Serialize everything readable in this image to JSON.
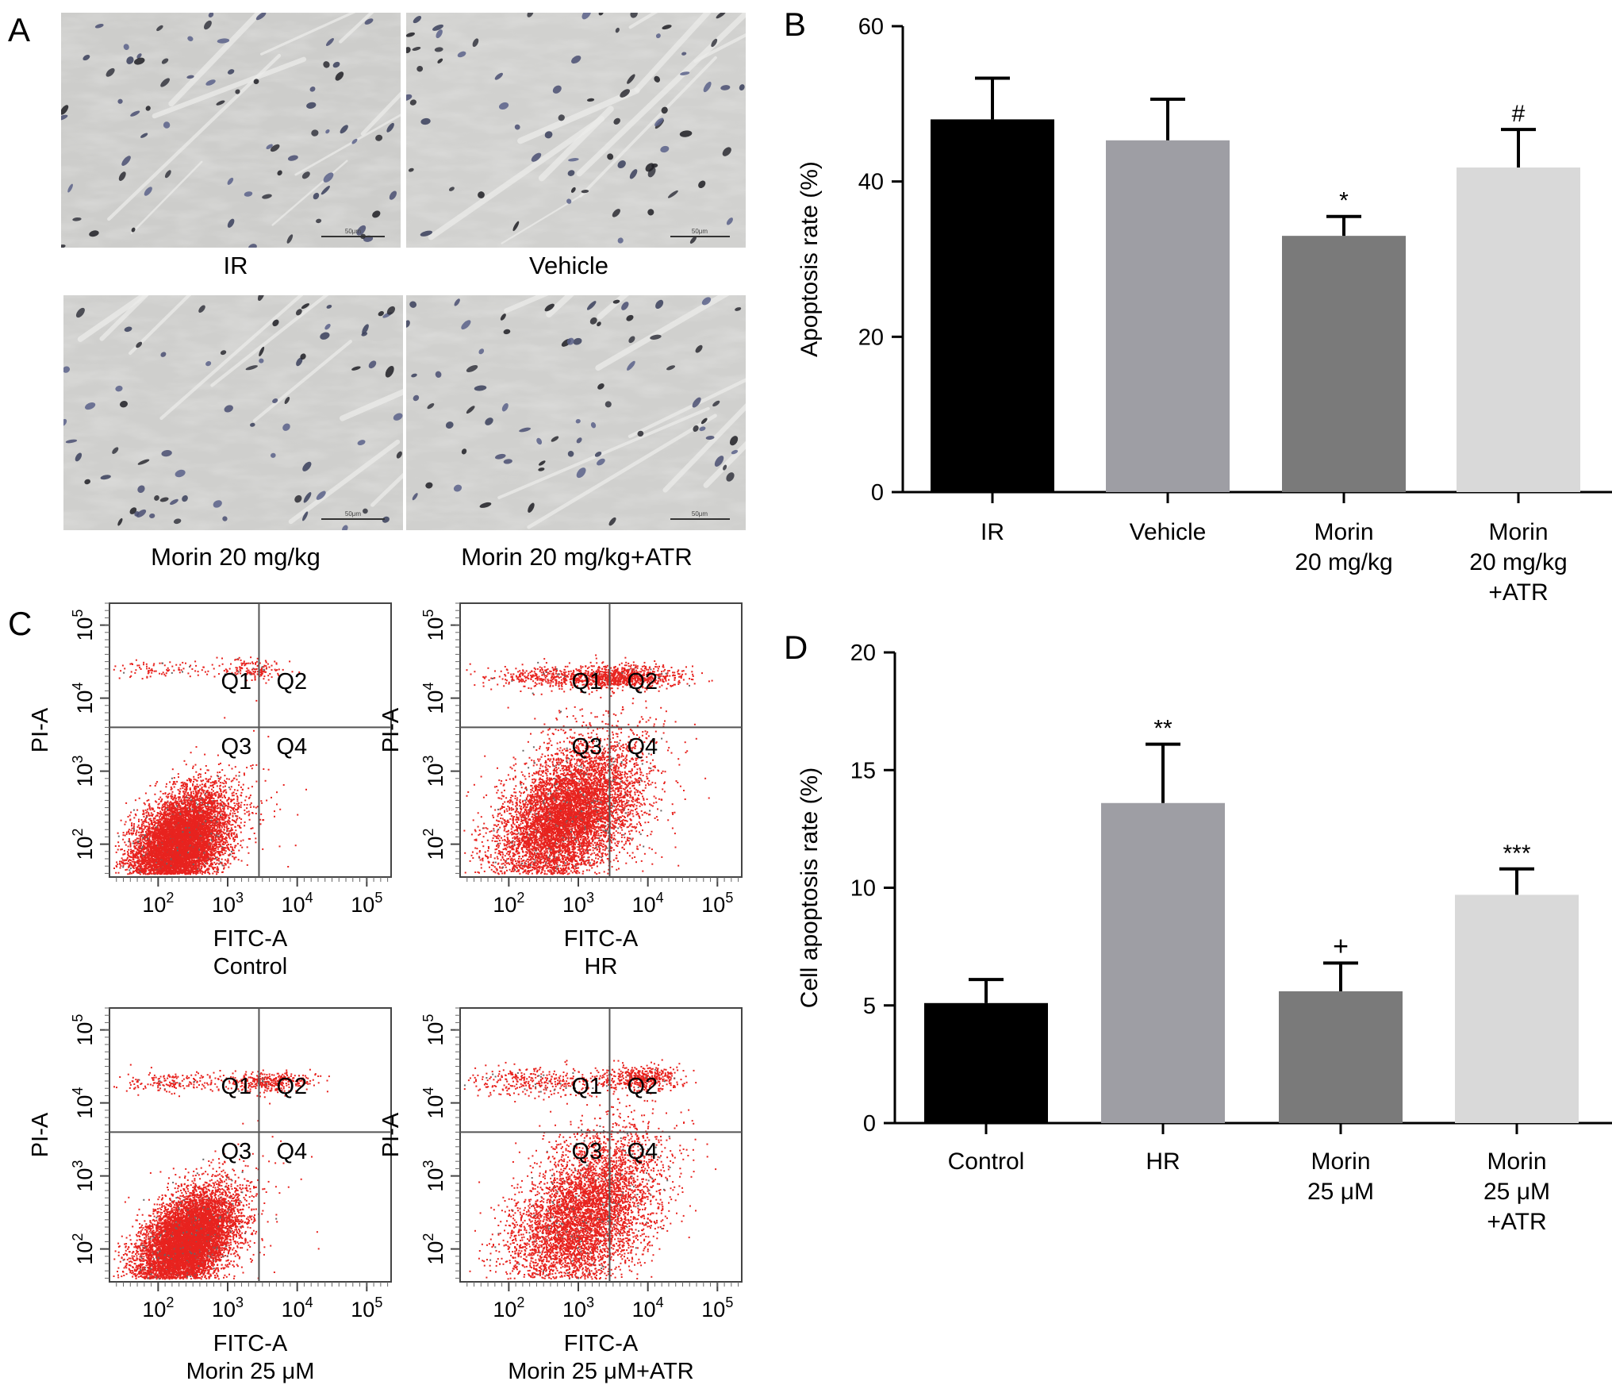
{
  "panels": {
    "A": {
      "letter": "A",
      "images": [
        {
          "caption": "IR",
          "scale_bar": "50μm"
        },
        {
          "caption": "Vehicle",
          "scale_bar": "50μm"
        },
        {
          "caption": "Morin 20 mg/kg",
          "scale_bar": "50μm"
        },
        {
          "caption": "Morin 20 mg/kg+ATR",
          "scale_bar": "50μm"
        }
      ]
    },
    "B": {
      "letter": "B"
    },
    "C": {
      "letter": "C",
      "plots": [
        {
          "caption": "Control",
          "xlabel": "FITC-A",
          "ylabel": "PI-A",
          "quadrants": [
            "Q1",
            "Q2",
            "Q3",
            "Q4"
          ],
          "populations": [
            [
              2.3,
              2.0,
              0.35,
              0.33,
              9000
            ],
            [
              3.4,
              4.4,
              0.2,
              0.07,
              140
            ],
            [
              2.0,
              4.4,
              0.5,
              0.07,
              110
            ],
            [
              3.2,
              2.5,
              0.4,
              0.6,
              60
            ]
          ]
        },
        {
          "caption": "HR",
          "xlabel": "FITC-A",
          "ylabel": "PI-A",
          "quadrants": [
            "Q1",
            "Q2",
            "Q3",
            "Q4"
          ],
          "populations": [
            [
              2.8,
              2.35,
              0.5,
              0.45,
              7000
            ],
            [
              3.6,
              4.3,
              0.45,
              0.08,
              900
            ],
            [
              2.5,
              4.3,
              0.5,
              0.08,
              300
            ],
            [
              3.4,
              2.8,
              0.5,
              0.6,
              500
            ]
          ]
        },
        {
          "caption": "Morin 25 μM",
          "xlabel": "FITC-A",
          "ylabel": "PI-A",
          "quadrants": [
            "Q1",
            "Q2",
            "Q3",
            "Q4"
          ],
          "populations": [
            [
              2.4,
              2.1,
              0.35,
              0.32,
              9000
            ],
            [
              3.6,
              4.3,
              0.3,
              0.07,
              350
            ],
            [
              2.2,
              4.3,
              0.5,
              0.07,
              200
            ],
            [
              3.3,
              2.5,
              0.4,
              0.6,
              80
            ]
          ]
        },
        {
          "caption": "Morin 25 μM+ATR",
          "xlabel": "FITC-A",
          "ylabel": "PI-A",
          "quadrants": [
            "Q1",
            "Q2",
            "Q3",
            "Q4"
          ],
          "populations": [
            [
              3.0,
              2.4,
              0.5,
              0.5,
              5000
            ],
            [
              3.9,
              4.35,
              0.3,
              0.08,
              450
            ],
            [
              2.4,
              4.3,
              0.5,
              0.1,
              350
            ],
            [
              3.6,
              3.0,
              0.45,
              0.55,
              500
            ]
          ]
        }
      ]
    },
    "D": {
      "letter": "D"
    }
  },
  "chart_data": [
    {
      "panel": "B",
      "type": "bar",
      "categories": [
        "IR",
        "Vehicle",
        "Morin\n20 mg/kg",
        "Morin\n20 mg/kg\n+ATR"
      ],
      "values": [
        48,
        45.3,
        33,
        41.8
      ],
      "errors": [
        5.3,
        5.3,
        2.5,
        4.9
      ],
      "annotations": [
        "",
        "",
        "*",
        "#"
      ],
      "ylabel": "Apoptosis rate (%)",
      "ylim": [
        0,
        60
      ],
      "yticks": [
        0,
        20,
        40,
        60
      ],
      "colors": [
        "#000000",
        "#9e9ea4",
        "#7a7a7a",
        "#d9d9d9"
      ],
      "grid": false
    },
    {
      "panel": "D",
      "type": "bar",
      "categories": [
        "Control",
        "HR",
        "Morin\n25 μM",
        "Morin\n25 μM\n+ATR"
      ],
      "values": [
        5.1,
        13.6,
        5.6,
        9.7
      ],
      "errors": [
        1.0,
        2.5,
        1.2,
        1.1
      ],
      "annotations": [
        "",
        "**",
        "+",
        "***"
      ],
      "ylabel": "Cell apoptosis rate (%)",
      "ylim": [
        0,
        20
      ],
      "yticks": [
        0,
        5,
        10,
        15,
        20
      ],
      "colors": [
        "#000000",
        "#9e9ea4",
        "#7a7a7a",
        "#d9d9d9"
      ],
      "grid": false
    }
  ]
}
